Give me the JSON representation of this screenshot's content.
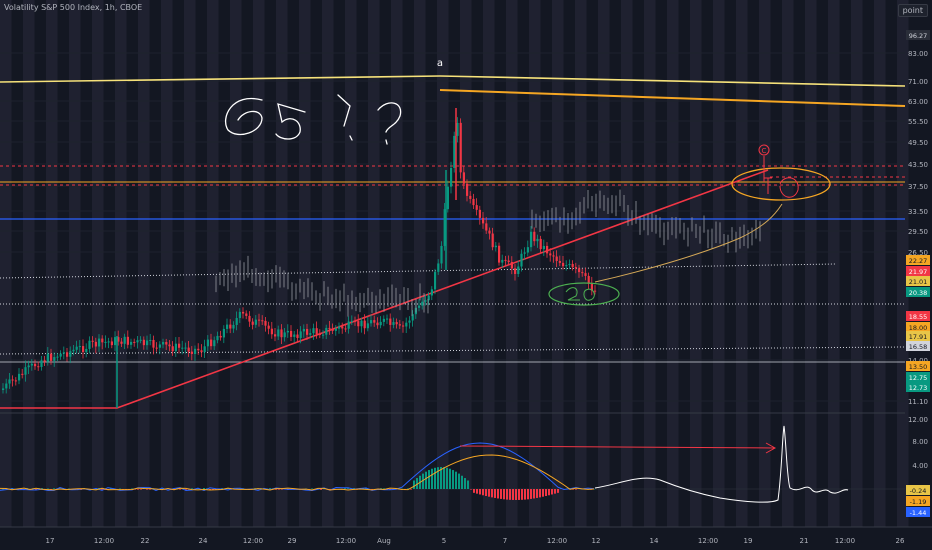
{
  "header": {
    "title": "Volatility S&P 500 Index, 1h, CBOE",
    "unit_label": "point",
    "annotation_a": "a"
  },
  "chart_data": {
    "type": "candlestick",
    "y_ticks": [
      "83.00",
      "71.00",
      "63.00",
      "55.50",
      "49.50",
      "43.50",
      "37.50",
      "33.50",
      "29.50",
      "26.50",
      "14.00",
      "11.10"
    ],
    "price_tags": [
      {
        "text": "96.27",
        "bg": "#2a2e39",
        "fg": "#d1d4dc"
      },
      {
        "text": "22.27",
        "bg": "#f5a623",
        "fg": "#131722"
      },
      {
        "text": "21.97",
        "bg": "#f23645",
        "fg": "#ffffff"
      },
      {
        "text": "21.01",
        "bg": "#e8c547",
        "fg": "#131722"
      },
      {
        "text": "20.38",
        "bg": "#089981",
        "fg": "#ffffff"
      },
      {
        "text": "18.55",
        "bg": "#f23645",
        "fg": "#ffffff"
      },
      {
        "text": "18.00",
        "bg": "#f5a623",
        "fg": "#131722"
      },
      {
        "text": "17.91",
        "bg": "#e8c547",
        "fg": "#131722"
      },
      {
        "text": "16.58",
        "bg": "#d1d4dc",
        "fg": "#131722"
      },
      {
        "text": "13.50",
        "bg": "#f5a623",
        "fg": "#131722"
      },
      {
        "text": "12.75",
        "bg": "#089981",
        "fg": "#ffffff"
      },
      {
        "text": "12.73",
        "bg": "#089981",
        "fg": "#ffffff"
      }
    ],
    "indicator_ticks": [
      "12.00",
      "8.00",
      "4.00"
    ],
    "indicator_tags": [
      {
        "text": "-0.24",
        "bg": "#e8c547",
        "fg": "#131722"
      },
      {
        "text": "-1.19",
        "bg": "#f5a623",
        "fg": "#131722"
      },
      {
        "text": "-1.44",
        "bg": "#2962ff",
        "fg": "#ffffff"
      }
    ],
    "x_ticks": [
      "17",
      "12:00",
      "22",
      "24",
      "12:00",
      "29",
      "12:00",
      "Aug",
      "5",
      "7",
      "12:00",
      "12",
      "14",
      "12:00",
      "19",
      "21",
      "12:00",
      "26"
    ],
    "handwriting": {
      "big": "65!?",
      "lower": "20",
      "c_label": "C"
    },
    "colors": {
      "up": "#089981",
      "down": "#f23645",
      "ghost": "#9598a1",
      "background": "#131722"
    }
  }
}
